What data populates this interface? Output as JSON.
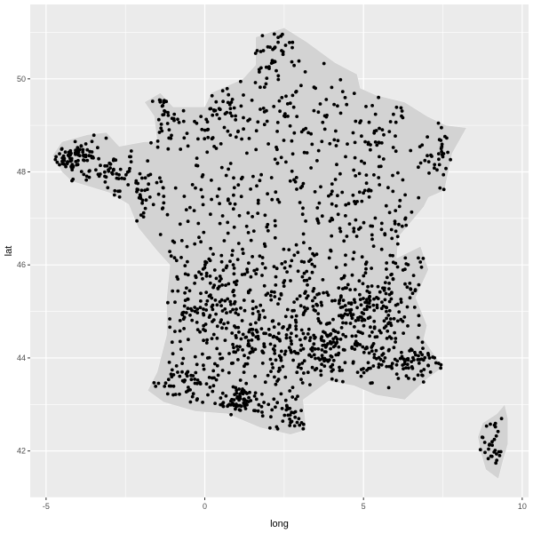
{
  "chart_data": {
    "type": "scatter",
    "title": "",
    "xlabel": "long",
    "ylabel": "lat",
    "xlim": [
      -5.5,
      10.2
    ],
    "ylim": [
      41.0,
      51.6
    ],
    "x_ticks": [
      -5,
      0,
      5,
      10
    ],
    "x_tick_labels": [
      "-5",
      "0",
      "5",
      "10"
    ],
    "y_ticks": [
      42,
      44,
      46,
      48,
      50
    ],
    "y_tick_labels": [
      "42",
      "44",
      "46",
      "48",
      "50"
    ],
    "grid": true,
    "legend": "none",
    "colors": {
      "panel_background": "#ebebeb",
      "grid": "#ffffff",
      "map_fill": "#d3d3d3",
      "points": "#000000",
      "text": "#4d4d4d"
    },
    "map_layers": [
      {
        "name": "mainland",
        "outline": [
          [
            2.5,
            51.1
          ],
          [
            3.2,
            50.8
          ],
          [
            4.1,
            50.35
          ],
          [
            4.8,
            50.1
          ],
          [
            4.9,
            49.8
          ],
          [
            5.4,
            49.65
          ],
          [
            6.3,
            49.5
          ],
          [
            7.0,
            49.2
          ],
          [
            7.6,
            49.0
          ],
          [
            8.25,
            48.95
          ],
          [
            7.8,
            48.4
          ],
          [
            7.55,
            47.6
          ],
          [
            7.05,
            47.45
          ],
          [
            6.9,
            47.25
          ],
          [
            6.1,
            46.6
          ],
          [
            6.05,
            46.15
          ],
          [
            6.8,
            46.4
          ],
          [
            7.05,
            45.9
          ],
          [
            6.65,
            45.3
          ],
          [
            7.0,
            44.7
          ],
          [
            6.9,
            44.4
          ],
          [
            7.5,
            43.8
          ],
          [
            7.0,
            43.55
          ],
          [
            6.3,
            43.1
          ],
          [
            5.4,
            43.2
          ],
          [
            4.7,
            43.4
          ],
          [
            3.9,
            43.5
          ],
          [
            3.1,
            43.1
          ],
          [
            3.2,
            42.45
          ],
          [
            2.7,
            42.35
          ],
          [
            1.75,
            42.5
          ],
          [
            0.7,
            42.8
          ],
          [
            -0.3,
            42.85
          ],
          [
            -1.3,
            43.05
          ],
          [
            -1.8,
            43.3
          ],
          [
            -1.5,
            43.7
          ],
          [
            -1.2,
            44.5
          ],
          [
            -1.2,
            45.3
          ],
          [
            -1.1,
            46.0
          ],
          [
            -1.5,
            46.3
          ],
          [
            -2.1,
            46.8
          ],
          [
            -2.4,
            47.3
          ],
          [
            -3.0,
            47.55
          ],
          [
            -4.2,
            47.8
          ],
          [
            -4.5,
            48.0
          ],
          [
            -4.8,
            48.35
          ],
          [
            -4.5,
            48.65
          ],
          [
            -3.7,
            48.8
          ],
          [
            -3.1,
            48.85
          ],
          [
            -2.7,
            48.55
          ],
          [
            -1.9,
            48.65
          ],
          [
            -1.5,
            48.65
          ],
          [
            -1.6,
            49.2
          ],
          [
            -1.9,
            49.5
          ],
          [
            -1.4,
            49.7
          ],
          [
            -1.0,
            49.4
          ],
          [
            0.0,
            49.4
          ],
          [
            0.2,
            49.7
          ],
          [
            1.2,
            50.0
          ],
          [
            1.6,
            50.3
          ],
          [
            1.6,
            50.9
          ],
          [
            2.5,
            51.1
          ]
        ]
      },
      {
        "name": "corsica",
        "outline": [
          [
            9.45,
            43.0
          ],
          [
            9.55,
            42.7
          ],
          [
            9.55,
            42.15
          ],
          [
            9.4,
            41.8
          ],
          [
            9.25,
            41.4
          ],
          [
            8.85,
            41.6
          ],
          [
            8.7,
            41.95
          ],
          [
            8.6,
            42.3
          ],
          [
            8.75,
            42.6
          ],
          [
            9.2,
            42.8
          ],
          [
            9.45,
            43.0
          ]
        ]
      }
    ],
    "points": {
      "approximate_count": 1900,
      "seed": 20240,
      "clusters": [
        {
          "center": [
            -4.1,
            48.3
          ],
          "spread": [
            0.45,
            0.2
          ],
          "count": 75
        },
        {
          "center": [
            -2.9,
            47.9
          ],
          "spread": [
            0.45,
            0.25
          ],
          "count": 40
        },
        {
          "center": [
            -1.9,
            47.5
          ],
          "spread": [
            0.4,
            0.3
          ],
          "count": 35
        },
        {
          "center": [
            -1.2,
            49.2
          ],
          "spread": [
            0.25,
            0.3
          ],
          "count": 30
        },
        {
          "center": [
            0.4,
            49.3
          ],
          "spread": [
            0.5,
            0.35
          ],
          "count": 40
        },
        {
          "center": [
            2.2,
            50.5
          ],
          "spread": [
            0.6,
            0.3
          ],
          "count": 35
        },
        {
          "center": [
            2.7,
            49.0
          ],
          "spread": [
            1.0,
            0.5
          ],
          "count": 45
        },
        {
          "center": [
            5.2,
            48.8
          ],
          "spread": [
            1.1,
            0.5
          ],
          "count": 40
        },
        {
          "center": [
            7.3,
            48.3
          ],
          "spread": [
            0.3,
            0.35
          ],
          "count": 25
        },
        {
          "center": [
            1.0,
            47.4
          ],
          "spread": [
            1.3,
            0.5
          ],
          "count": 55
        },
        {
          "center": [
            4.9,
            47.0
          ],
          "spread": [
            0.8,
            0.5
          ],
          "count": 45
        },
        {
          "center": [
            6.3,
            46.4
          ],
          "spread": [
            0.4,
            0.4
          ],
          "count": 30
        },
        {
          "center": [
            0.8,
            45.6
          ],
          "spread": [
            0.9,
            0.5
          ],
          "count": 90
        },
        {
          "center": [
            3.0,
            45.7
          ],
          "spread": [
            0.8,
            0.5
          ],
          "count": 70
        },
        {
          "center": [
            4.7,
            45.1
          ],
          "spread": [
            0.45,
            0.4
          ],
          "count": 90
        },
        {
          "center": [
            5.9,
            45.2
          ],
          "spread": [
            0.45,
            0.4
          ],
          "count": 55
        },
        {
          "center": [
            3.9,
            44.2
          ],
          "spread": [
            0.3,
            0.3
          ],
          "count": 70
        },
        {
          "center": [
            -0.3,
            44.9
          ],
          "spread": [
            0.4,
            0.45
          ],
          "count": 55
        },
        {
          "center": [
            1.5,
            44.4
          ],
          "spread": [
            0.8,
            0.45
          ],
          "count": 120
        },
        {
          "center": [
            2.9,
            44.1
          ],
          "spread": [
            0.5,
            0.4
          ],
          "count": 60
        },
        {
          "center": [
            5.2,
            44.0
          ],
          "spread": [
            0.6,
            0.35
          ],
          "count": 60
        },
        {
          "center": [
            6.8,
            43.9
          ],
          "spread": [
            0.5,
            0.2
          ],
          "count": 55
        },
        {
          "center": [
            -0.7,
            43.5
          ],
          "spread": [
            0.55,
            0.25
          ],
          "count": 55
        },
        {
          "center": [
            1.1,
            43.1
          ],
          "spread": [
            0.35,
            0.15
          ],
          "count": 70
        },
        {
          "center": [
            2.5,
            42.8
          ],
          "spread": [
            0.35,
            0.25
          ],
          "count": 45
        },
        {
          "center": [
            9.05,
            42.1
          ],
          "spread": [
            0.25,
            0.4
          ],
          "count": 30
        }
      ],
      "uniform_count": 350
    }
  }
}
